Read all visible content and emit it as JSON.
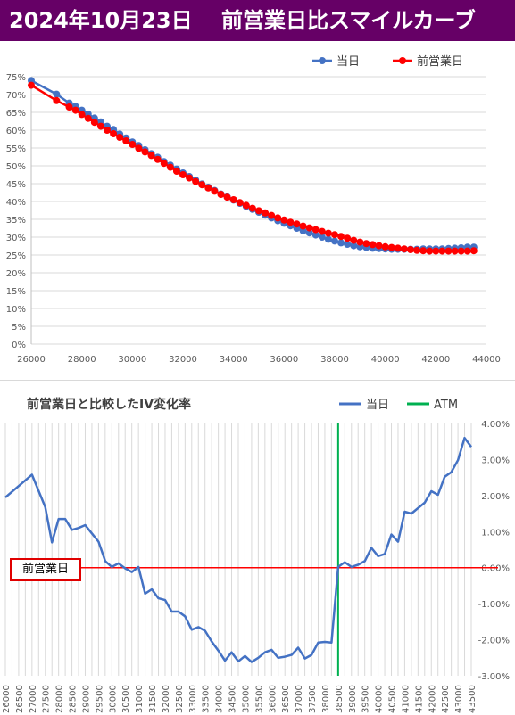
{
  "banner": {
    "title": "2024年10月23日　 前営業日比スマイルカーブ",
    "bg_color": "#660066"
  },
  "chart_data": [
    {
      "type": "line",
      "title": "",
      "legend": {
        "position": "top-right",
        "entries": [
          "当日",
          "前営業日"
        ]
      },
      "xlim": [
        26000,
        44000
      ],
      "ylim": [
        0,
        75
      ],
      "x_ticks": [
        "26000",
        "28000",
        "30000",
        "32000",
        "34000",
        "36000",
        "38000",
        "40000",
        "42000",
        "44000"
      ],
      "y_ticks": [
        "0%",
        "5%",
        "10%",
        "15%",
        "20%",
        "25%",
        "30%",
        "35%",
        "40%",
        "45%",
        "50%",
        "55%",
        "60%",
        "65%",
        "70%",
        "75%"
      ],
      "grid": "horizontal",
      "series": [
        {
          "name": "当日",
          "color": "#4472c4",
          "x": [
            26000,
            27000,
            27500,
            27750,
            28000,
            28250,
            28500,
            28750,
            29000,
            29250,
            29500,
            29750,
            30000,
            30250,
            30500,
            30750,
            31000,
            31250,
            31500,
            31750,
            32000,
            32250,
            32500,
            32750,
            33000,
            33250,
            33500,
            33750,
            34000,
            34250,
            34500,
            34750,
            35000,
            35250,
            35500,
            35750,
            36000,
            36250,
            36500,
            36750,
            37000,
            37250,
            37500,
            37750,
            38000,
            38250,
            38500,
            38750,
            39000,
            39250,
            39500,
            39750,
            40000,
            40250,
            40500,
            40750,
            41000,
            41250,
            41500,
            41750,
            42000,
            42250,
            42500,
            42750,
            43000,
            43250,
            43500
          ],
          "y": [
            73.9,
            70.1,
            67.6,
            66.7,
            65.6,
            64.5,
            63.4,
            62.3,
            61.1,
            60.2,
            58.9,
            57.8,
            56.7,
            55.7,
            54.5,
            53.4,
            52.4,
            51.2,
            50.2,
            49.1,
            48.0,
            47.0,
            46.0,
            44.9,
            44.0,
            43.1,
            42.1,
            41.3,
            40.4,
            39.5,
            38.6,
            37.8,
            37.0,
            36.2,
            35.4,
            34.6,
            33.9,
            33.2,
            32.5,
            31.8,
            31.2,
            30.6,
            30.0,
            29.4,
            28.9,
            28.4,
            28.0,
            27.6,
            27.3,
            27.1,
            26.9,
            26.8,
            26.7,
            26.6,
            26.6,
            26.6,
            26.6,
            26.6,
            26.7,
            26.7,
            26.7,
            26.7,
            26.8,
            26.9,
            27.0,
            27.2,
            27.2
          ]
        },
        {
          "name": "前営業日",
          "color": "#ff0000",
          "x": [
            26000,
            27000,
            27500,
            27750,
            28000,
            28250,
            28500,
            28750,
            29000,
            29250,
            29500,
            29750,
            30000,
            30250,
            30500,
            30750,
            31000,
            31250,
            31500,
            31750,
            32000,
            32250,
            32500,
            32750,
            33000,
            33250,
            33500,
            33750,
            34000,
            34250,
            34500,
            34750,
            35000,
            35250,
            35500,
            35750,
            36000,
            36250,
            36500,
            36750,
            37000,
            37250,
            37500,
            37750,
            38000,
            38250,
            38500,
            38750,
            39000,
            39250,
            39500,
            39750,
            40000,
            40250,
            40500,
            40750,
            41000,
            41250,
            41500,
            41750,
            42000,
            42250,
            42500,
            42750,
            43000,
            43250,
            43500
          ],
          "y": [
            72.6,
            68.3,
            66.5,
            65.6,
            64.4,
            63.3,
            62.2,
            61.1,
            60.0,
            59.0,
            58.0,
            57.0,
            56.0,
            54.9,
            53.9,
            52.9,
            51.8,
            50.7,
            49.6,
            48.5,
            47.5,
            46.6,
            45.6,
            44.7,
            43.8,
            42.9,
            42.0,
            41.2,
            40.5,
            39.7,
            38.9,
            38.1,
            37.4,
            36.8,
            36.1,
            35.4,
            34.8,
            34.2,
            33.7,
            33.1,
            32.6,
            32.1,
            31.6,
            31.1,
            30.7,
            30.2,
            29.7,
            29.1,
            28.6,
            28.2,
            27.9,
            27.6,
            27.3,
            27.1,
            26.9,
            26.7,
            26.5,
            26.3,
            26.2,
            26.1,
            26.1,
            26.1,
            26.1,
            26.1,
            26.1,
            26.1,
            26.2
          ]
        }
      ]
    },
    {
      "type": "line",
      "title": "前営業日と比較したIV変化率",
      "legend": {
        "position": "top-right",
        "entries": [
          "当日",
          "ATM"
        ]
      },
      "ylim": [
        -3.0,
        4.0
      ],
      "y_ticks": [
        "4.00%",
        "3.00%",
        "2.00%",
        "1.00%",
        "0.00%",
        "-1.00%",
        "-2.00%",
        "-3.00%"
      ],
      "categories": [
        26000,
        26500,
        27000,
        27500,
        28000,
        28500,
        29000,
        29500,
        30000,
        30500,
        31000,
        31500,
        32000,
        32500,
        33000,
        33500,
        34000,
        34500,
        35000,
        35500,
        36000,
        36500,
        37000,
        37500,
        38000,
        38500,
        39000,
        39500,
        40000,
        40500,
        41000,
        41500,
        42000,
        42500,
        43000,
        43500
      ],
      "atm": 38500,
      "reference_label": "前営業日",
      "series": [
        {
          "name": "当日",
          "color": "#4472c4",
          "x": [
            26000,
            27000,
            27500,
            27750,
            28000,
            28250,
            28500,
            28750,
            29000,
            29250,
            29500,
            29750,
            30000,
            30250,
            30500,
            30750,
            31000,
            31250,
            31500,
            31750,
            32000,
            32250,
            32500,
            32750,
            33000,
            33250,
            33500,
            33750,
            34000,
            34250,
            34500,
            34750,
            35000,
            35250,
            35500,
            35750,
            36000,
            36250,
            36500,
            36750,
            37000,
            37250,
            37500,
            37750,
            38000,
            38250,
            38500,
            38750,
            39000,
            39250,
            39500,
            39750,
            40000,
            40250,
            40500,
            40750,
            41000,
            41250,
            41500,
            41750,
            42000,
            42250,
            42500,
            42750,
            43000,
            43250,
            43500
          ],
          "y": [
            1.95,
            2.58,
            1.68,
            0.7,
            1.35,
            1.35,
            1.05,
            1.1,
            1.18,
            0.95,
            0.72,
            0.18,
            0.02,
            0.12,
            -0.02,
            -0.12,
            0.02,
            -0.72,
            -0.6,
            -0.85,
            -0.9,
            -1.22,
            -1.22,
            -1.35,
            -1.72,
            -1.65,
            -1.75,
            -2.05,
            -2.3,
            -2.58,
            -2.35,
            -2.6,
            -2.45,
            -2.62,
            -2.5,
            -2.35,
            -2.28,
            -2.5,
            -2.47,
            -2.42,
            -2.22,
            -2.52,
            -2.42,
            -2.08,
            -2.06,
            -2.08,
            0.02,
            0.15,
            0.02,
            0.08,
            0.18,
            0.55,
            0.32,
            0.38,
            0.92,
            0.72,
            1.55,
            1.5,
            1.65,
            1.8,
            2.12,
            2.02,
            2.52,
            2.65,
            2.98,
            3.6,
            3.35
          ]
        }
      ],
      "colors": {
        "atm": "#00b050",
        "zero_line": "#ff0000",
        "grid": "#d9d9d9"
      }
    }
  ]
}
